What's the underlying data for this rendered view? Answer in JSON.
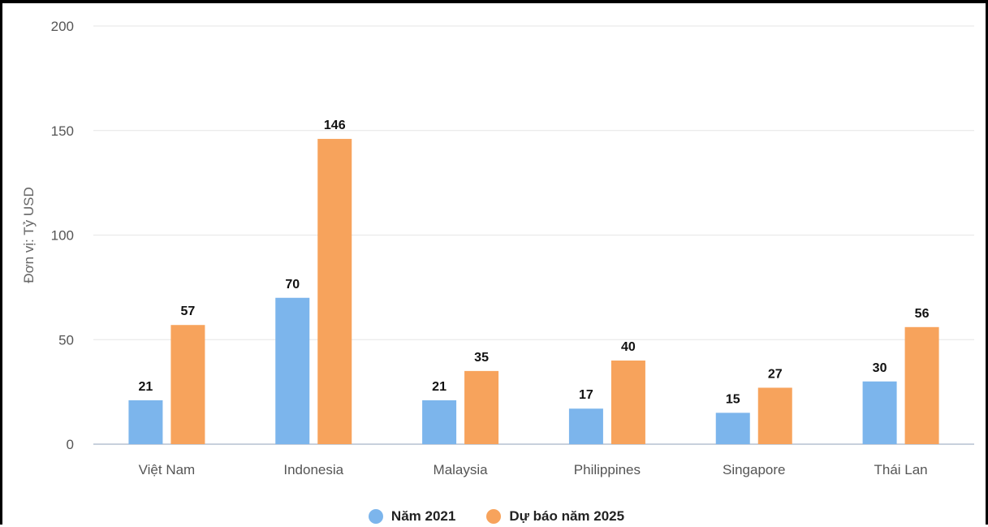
{
  "chart_data": {
    "type": "bar",
    "categories": [
      "Việt Nam",
      "Indonesia",
      "Malaysia",
      "Philippines",
      "Singapore",
      "Thái Lan"
    ],
    "series": [
      {
        "name": "Năm 2021",
        "values": [
          21,
          70,
          21,
          17,
          15,
          30
        ],
        "color": "#7cb5ec"
      },
      {
        "name": "Dự báo năm 2025",
        "values": [
          57,
          146,
          35,
          40,
          27,
          56
        ],
        "color": "#f7a35c"
      }
    ],
    "ylabel": "Đơn vị: Tỷ USD",
    "ylim": [
      0,
      200
    ],
    "yticks": [
      0,
      50,
      100,
      150,
      200
    ],
    "grid": true,
    "legend_position": "bottom-center",
    "data_labels": true
  }
}
